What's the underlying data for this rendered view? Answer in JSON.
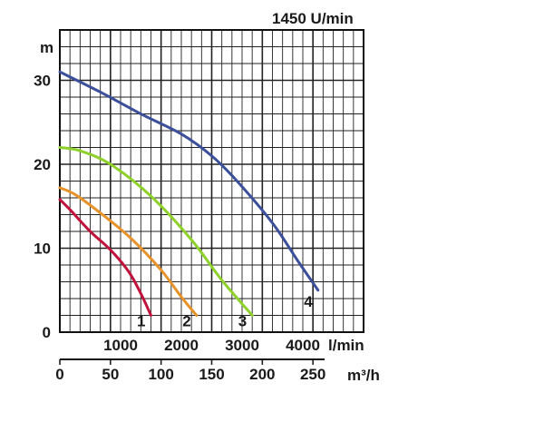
{
  "speed_label": "1450 U/min",
  "chart_data": {
    "type": "line",
    "title": "",
    "ylabel": "m",
    "y_ticks": [
      0,
      10,
      20,
      30
    ],
    "ylim": [
      0,
      36
    ],
    "x_primary": {
      "unit": "m³/h",
      "ticks": [
        0,
        50,
        100,
        150,
        200,
        250
      ],
      "range": [
        0,
        300
      ]
    },
    "x_secondary": {
      "unit": "l/min",
      "ticks": [
        1000,
        2000,
        3000,
        4000
      ]
    },
    "grid": true,
    "series": [
      {
        "name": "1",
        "color": "#c0143c",
        "points": [
          [
            0,
            15.8
          ],
          [
            10,
            14.6
          ],
          [
            30,
            12.0
          ],
          [
            50,
            9.8
          ],
          [
            68,
            7.2
          ],
          [
            80,
            4.6
          ],
          [
            90,
            2.0
          ]
        ]
      },
      {
        "name": "2",
        "color": "#e8922a",
        "points": [
          [
            0,
            17.2
          ],
          [
            15,
            16.4
          ],
          [
            40,
            14.2
          ],
          [
            70,
            11.2
          ],
          [
            100,
            7.4
          ],
          [
            120,
            4.2
          ],
          [
            135,
            2.0
          ]
        ]
      },
      {
        "name": "3",
        "color": "#8ed12a",
        "points": [
          [
            0,
            22.0
          ],
          [
            20,
            21.6
          ],
          [
            50,
            20.0
          ],
          [
            90,
            16.2
          ],
          [
            130,
            11.0
          ],
          [
            160,
            6.2
          ],
          [
            190,
            2.0
          ]
        ]
      },
      {
        "name": "4",
        "color": "#3b4f9a",
        "points": [
          [
            0,
            31.0
          ],
          [
            40,
            28.6
          ],
          [
            80,
            26.0
          ],
          [
            120,
            23.6
          ],
          [
            150,
            21.0
          ],
          [
            175,
            18.0
          ],
          [
            210,
            13.0
          ],
          [
            235,
            8.5
          ],
          [
            255,
            5.0
          ]
        ]
      }
    ]
  }
}
